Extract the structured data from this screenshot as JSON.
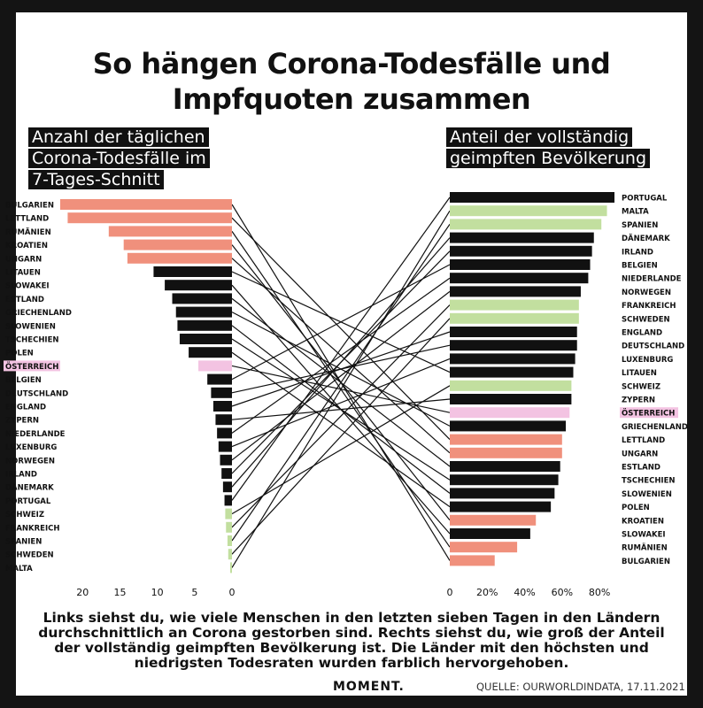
{
  "title_lines": [
    "So hängen Corona-Todesfälle und",
    "Impfquoten zusammen"
  ],
  "left_label": [
    "Anzahl der täglichen",
    "Corona-Todesfälle im",
    "7-Tages-Schnitt"
  ],
  "right_label": [
    "Anteil der vollständig",
    "geimpften Bevölkerung"
  ],
  "description": "Links siehst du, wie viele Menschen in den letzten sieben Tagen in den Ländern durchschnittlich an Corona gestorben sind. Rechts siehst du, wie groß der Anteil der vollständig geimpften Bevölkerung ist. Die Länder mit den höchsten und niedrigsten Todesraten wurden farblich hervorgehoben.",
  "logo": "MOMENT.",
  "source": "QUELLE: OURWORLDINDATA, 17.11.2021",
  "colors": {
    "high": "#f0907c",
    "low": "#c2df9f",
    "austria": "#f3c3e2",
    "neutral": "#111111"
  },
  "chart_data": [
    {
      "type": "bar",
      "orientation": "horizontal-mirrored",
      "categories": [
        "BULGARIEN",
        "LETTLAND",
        "RUMÄNIEN",
        "KROATIEN",
        "UNGARN",
        "LITAUEN",
        "SLOWAKEI",
        "ESTLAND",
        "GRIECHENLAND",
        "SLOWENIEN",
        "TSCHECHIEN",
        "POLEN",
        "ÖSTERREICH",
        "BELGIEN",
        "DEUTSCHLAND",
        "ENGLAND",
        "ZYPERN",
        "NIEDERLANDE",
        "LUXENBURG",
        "NORWEGEN",
        "IRLAND",
        "DÄNEMARK",
        "PORTUGAL",
        "SCHWEIZ",
        "FRANKREICH",
        "SPANIEN",
        "SCHWEDEN",
        "MALTA"
      ],
      "values": [
        23,
        22,
        16.5,
        14.5,
        14,
        10.5,
        9,
        8,
        7.5,
        7.3,
        7,
        5.8,
        4.5,
        3.3,
        2.8,
        2.5,
        2.2,
        2.0,
        1.8,
        1.6,
        1.4,
        1.2,
        1.0,
        0.9,
        0.8,
        0.6,
        0.5,
        0.2
      ],
      "highlight": [
        "high",
        "high",
        "high",
        "high",
        "high",
        "neutral",
        "neutral",
        "neutral",
        "neutral",
        "neutral",
        "neutral",
        "neutral",
        "austria",
        "neutral",
        "neutral",
        "neutral",
        "neutral",
        "neutral",
        "neutral",
        "neutral",
        "neutral",
        "neutral",
        "neutral",
        "low",
        "low",
        "low",
        "low",
        "low"
      ],
      "xticks": [
        "20",
        "15",
        "10",
        "5",
        "0"
      ],
      "xlim": [
        0,
        25
      ]
    },
    {
      "type": "bar",
      "orientation": "horizontal",
      "categories": [
        "PORTUGAL",
        "MALTA",
        "SPANIEN",
        "DÄNEMARK",
        "IRLAND",
        "BELGIEN",
        "NIEDERLANDE",
        "NORWEGEN",
        "FRANKREICH",
        "SCHWEDEN",
        "ENGLAND",
        "DEUTSCHLAND",
        "LUXENBURG",
        "LITAUEN",
        "SCHWEIZ",
        "ZYPERN",
        "ÖSTERREICH",
        "GRIECHENLAND",
        "LETTLAND",
        "UNGARN",
        "ESTLAND",
        "TSCHECHIEN",
        "SLOWENIEN",
        "POLEN",
        "KROATIEN",
        "SLOWAKEI",
        "RUMÄNIEN",
        "BULGARIEN"
      ],
      "values": [
        88,
        84,
        81,
        77,
        76,
        75,
        74,
        70,
        69,
        69,
        68,
        68,
        67,
        66,
        65,
        65,
        64,
        62,
        60,
        60,
        59,
        58,
        56,
        54,
        46,
        43,
        36,
        24
      ],
      "highlight": [
        "neutral",
        "low",
        "low",
        "neutral",
        "neutral",
        "neutral",
        "neutral",
        "neutral",
        "low",
        "low",
        "neutral",
        "neutral",
        "neutral",
        "neutral",
        "low",
        "neutral",
        "austria",
        "neutral",
        "high",
        "high",
        "neutral",
        "neutral",
        "neutral",
        "neutral",
        "high",
        "neutral",
        "high",
        "high"
      ],
      "xticks": [
        "0",
        "20%",
        "40%",
        "60%",
        "80%"
      ],
      "xlim": [
        0,
        90
      ]
    }
  ]
}
